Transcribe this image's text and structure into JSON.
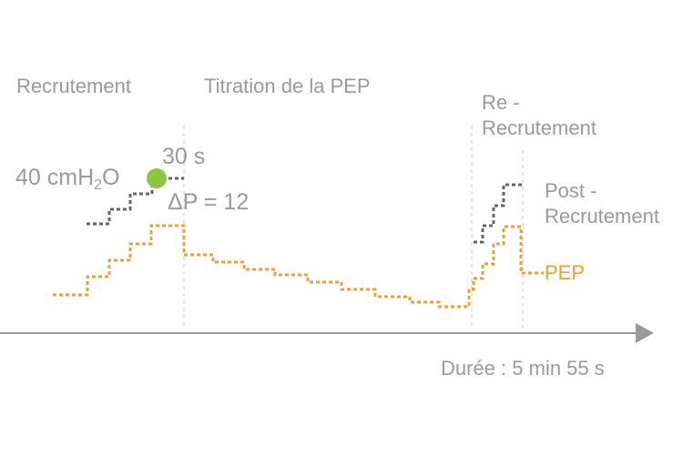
{
  "phases": {
    "recruitment": "Recrutement",
    "peep_titration": "Titration de la PEP",
    "re_recruitment_line1": "Re -",
    "re_recruitment_line2": "Recrutement",
    "post_recruitment_line1": "Post -",
    "post_recruitment_line2": "Recrutement"
  },
  "annotations": {
    "pressure_value": "40 cmH",
    "pressure_sub": "2",
    "pressure_unit_tail": "O",
    "hold_time": "30 s",
    "delta_p": "ΔP = 12"
  },
  "series": {
    "peep_label": "PEP"
  },
  "axis": {
    "duration_label": "Durée : 5 min 55 s"
  },
  "colors": {
    "peep": "#f0a030",
    "pressure": "#666666",
    "marker": "#8cc63f",
    "text": "#9a9a9a",
    "axis": "#9a9a9a",
    "divider": "#c8c8c8"
  }
}
